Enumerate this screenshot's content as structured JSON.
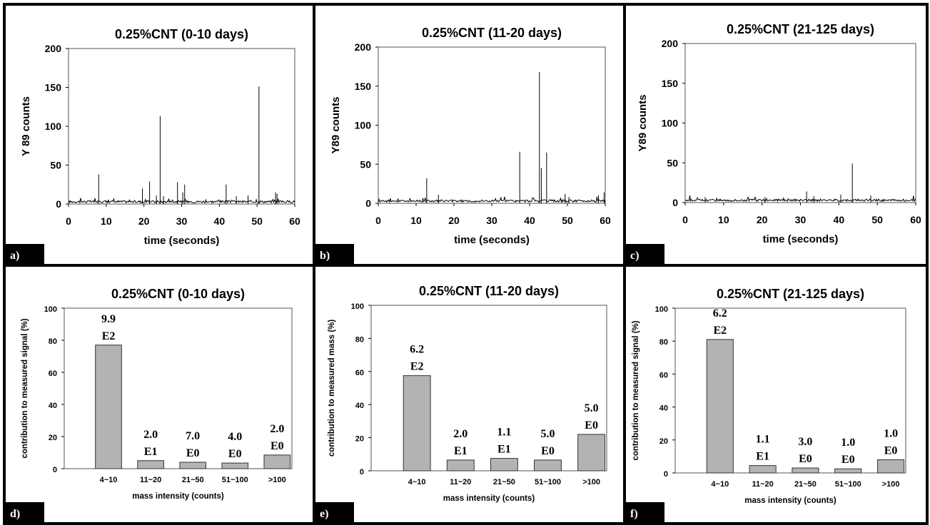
{
  "chart_data": [
    {
      "type": "line",
      "panel_tag": "a)",
      "title": "0.25%CNT (0-10 days)",
      "xlabel": "time (seconds)",
      "ylabel": "Y 89 counts",
      "xlim": [
        0,
        60
      ],
      "ylim": [
        0,
        200
      ],
      "xticks": [
        "0",
        "10",
        "20",
        "30",
        "40",
        "50",
        "60"
      ],
      "yticks": [
        "0",
        "50",
        "100",
        "150",
        "200"
      ],
      "baseline_level": 3,
      "spikes": {
        "x": [
          8,
          19.6,
          21.5,
          23.3,
          24.3,
          25.2,
          28.9,
          30.3,
          30.8,
          41.8,
          44.5,
          47.6,
          50.5,
          54.9,
          55.3
        ],
        "y": [
          38,
          20,
          29,
          11,
          113,
          10,
          28,
          15,
          25,
          25,
          10,
          11,
          151,
          15,
          13
        ]
      }
    },
    {
      "type": "line",
      "panel_tag": "b)",
      "title": "0.25%CNT (11-20 days)",
      "xlabel": "time (seconds)",
      "ylabel": "Y89 counts",
      "xlim": [
        0,
        60
      ],
      "ylim": [
        0,
        200
      ],
      "xticks": [
        "0",
        "10",
        "20",
        "30",
        "40",
        "50",
        "60"
      ],
      "yticks": [
        "0",
        "50",
        "100",
        "150",
        "200"
      ],
      "baseline_level": 3,
      "spikes": {
        "x": [
          12.8,
          15.9,
          37.4,
          42.6,
          43.1,
          44.5,
          49.4,
          50.4,
          58.2,
          59.7
        ],
        "y": [
          32,
          11,
          66,
          168,
          45,
          65,
          12,
          8,
          10,
          14
        ]
      }
    },
    {
      "type": "line",
      "panel_tag": "c)",
      "title": "0.25%CNT (21-125 days)",
      "xlabel": "time (seconds)",
      "ylabel": "Y89 counts",
      "xlim": [
        0,
        60
      ],
      "ylim": [
        0,
        200
      ],
      "xticks": [
        "0",
        "10",
        "20",
        "30",
        "40",
        "50",
        "60"
      ],
      "yticks": [
        "0",
        "50",
        "100",
        "150",
        "200"
      ],
      "baseline_level": 3,
      "spikes": {
        "x": [
          5.2,
          20.8,
          31.6,
          33.5,
          40.5,
          43.5,
          48.3
        ],
        "y": [
          7,
          7,
          14,
          8,
          10,
          49,
          9
        ]
      }
    },
    {
      "type": "bar",
      "panel_tag": "d)",
      "title": "0.25%CNT (0-10 days)",
      "xlabel": "mass intensity (counts)",
      "ylabel": "contribution to measured signal (%)",
      "ylim": [
        0,
        100
      ],
      "yticks": [
        "0",
        "20",
        "40",
        "60",
        "80",
        "100"
      ],
      "categories": [
        "4~10",
        "11~20",
        "21~50",
        "51~100",
        ">100"
      ],
      "values": [
        77,
        5,
        4,
        3.5,
        8.5
      ],
      "bar_labels": [
        [
          "9.9",
          "E2"
        ],
        [
          "2.0",
          "E1"
        ],
        [
          "7.0",
          "E0"
        ],
        [
          "4.0",
          "E0"
        ],
        [
          "2.0",
          "E0"
        ]
      ]
    },
    {
      "type": "bar",
      "panel_tag": "e)",
      "title": "0.25%CNT (11-20 days)",
      "xlabel": "mass intensity (counts)",
      "ylabel": "contribution to measured mass (%)",
      "ylim": [
        0,
        100
      ],
      "yticks": [
        "0",
        "20",
        "40",
        "60",
        "80",
        "100"
      ],
      "categories": [
        "4~10",
        "11~20",
        "21~50",
        "51~100",
        ">100"
      ],
      "values": [
        57.5,
        6.5,
        7.5,
        6.5,
        22
      ],
      "bar_labels": [
        [
          "6.2",
          "E2"
        ],
        [
          "2.0",
          "E1"
        ],
        [
          "1.1",
          "E1"
        ],
        [
          "5.0",
          "E0"
        ],
        [
          "5.0",
          "E0"
        ]
      ]
    },
    {
      "type": "bar",
      "panel_tag": "f)",
      "title": "0.25%CNT (21-125 days)",
      "xlabel": "mass intensity (counts)",
      "ylabel": "contribution to measured signal (%)",
      "ylim": [
        0,
        100
      ],
      "yticks": [
        "0",
        "20",
        "40",
        "60",
        "80",
        "100"
      ],
      "categories": [
        "4~10",
        "11~20",
        "21~50",
        "51~100",
        ">100"
      ],
      "values": [
        81,
        4.5,
        3,
        2.5,
        8
      ],
      "bar_labels": [
        [
          "6.2",
          "E2"
        ],
        [
          "1.1",
          "E1"
        ],
        [
          "3.0",
          "E0"
        ],
        [
          "1.0",
          "E0"
        ],
        [
          "1.0",
          "E0"
        ]
      ]
    }
  ]
}
